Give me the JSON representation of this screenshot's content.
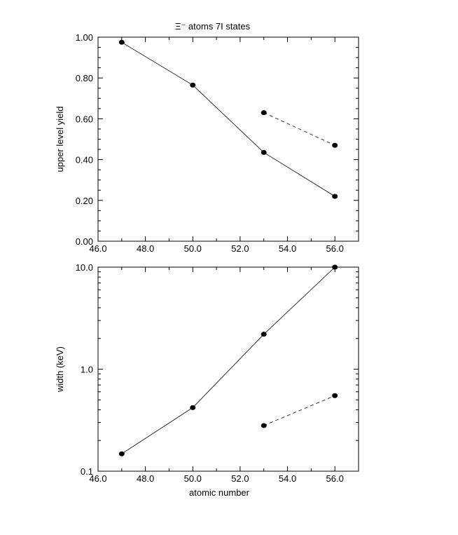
{
  "chart_data": [
    {
      "type": "line",
      "title": "Ξ⁻ atoms 7I states",
      "xlabel": "",
      "ylabel": "upper level yield",
      "xlim": [
        46.0,
        57.0
      ],
      "ylim": [
        0.0,
        1.0
      ],
      "yscale": "linear",
      "x_tick_labels": [
        "46.0",
        "48.0",
        "50.0",
        "52.0",
        "54.0",
        "56.0"
      ],
      "y_tick_labels": [
        "0.00",
        "0.20",
        "0.40",
        "0.60",
        "0.80",
        "1.00"
      ],
      "series": [
        {
          "style": "solid",
          "x": [
            47,
            50,
            53,
            56
          ],
          "y": [
            0.975,
            0.765,
            0.435,
            0.22
          ]
        },
        {
          "style": "dashed",
          "x": [
            53,
            56
          ],
          "y": [
            0.63,
            0.47
          ]
        }
      ]
    },
    {
      "type": "line",
      "title": "",
      "xlabel": "atomic number",
      "ylabel": "width (keV)",
      "xlim": [
        46.0,
        57.0
      ],
      "ylim": [
        0.1,
        10.0
      ],
      "yscale": "log",
      "x_tick_labels": [
        "46.0",
        "48.0",
        "50.0",
        "52.0",
        "54.0",
        "56.0"
      ],
      "y_tick_labels": [
        "0.1",
        "1.0",
        "10.0"
      ],
      "series": [
        {
          "style": "solid",
          "x": [
            47,
            50,
            53,
            56
          ],
          "y": [
            0.148,
            0.42,
            2.2,
            10.0
          ]
        },
        {
          "style": "dashed",
          "x": [
            53,
            56
          ],
          "y": [
            0.28,
            0.55
          ]
        }
      ]
    }
  ]
}
